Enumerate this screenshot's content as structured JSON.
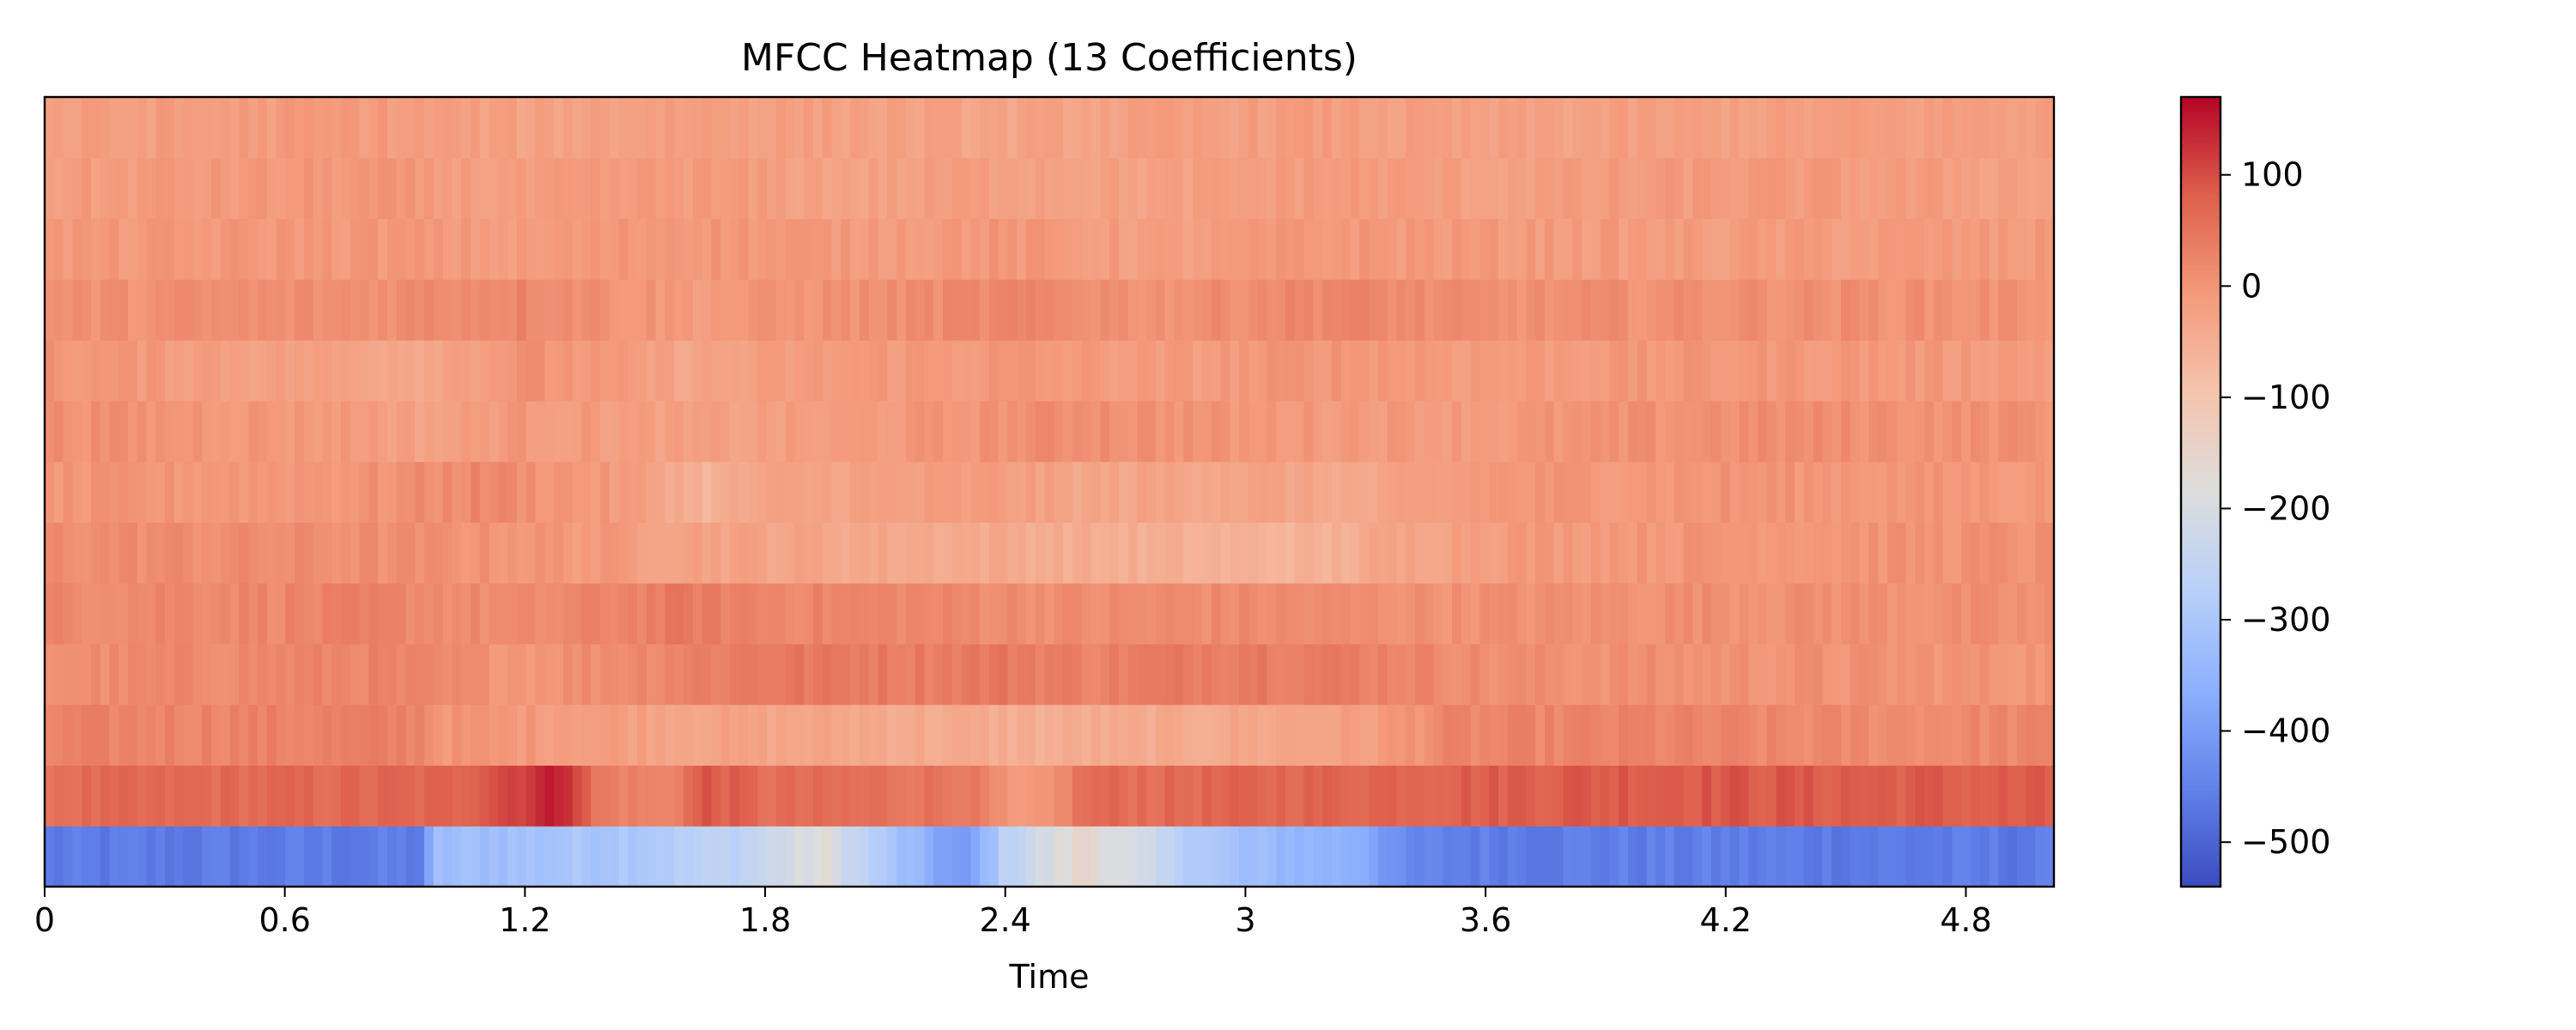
{
  "chart_data": {
    "type": "heatmap",
    "title": "MFCC Heatmap (13 Coefficients)",
    "xlabel": "Time",
    "ylabel": "",
    "x_range": [
      0,
      5.02
    ],
    "x_ticks": [
      "0",
      "0.6",
      "1.2",
      "1.8",
      "2.4",
      "3",
      "3.6",
      "4.2",
      "4.8"
    ],
    "x_tick_values": [
      0,
      0.6,
      1.2,
      1.8,
      2.4,
      3,
      3.6,
      4.2,
      4.8
    ],
    "colormap": "coolwarm",
    "color_range": [
      -540,
      170
    ],
    "colorbar_ticks": [
      "100",
      "0",
      "−100",
      "−200",
      "−300",
      "−400",
      "−500"
    ],
    "colorbar_tick_values": [
      100,
      0,
      -100,
      -200,
      -300,
      -400,
      -500
    ],
    "grid": false,
    "num_frames": 217,
    "coefficient_profiles": [
      {
        "coefficient": 1,
        "base": -460,
        "keyframes": [
          [
            0,
            -465
          ],
          [
            0.95,
            -460
          ],
          [
            0.97,
            -330
          ],
          [
            1.5,
            -290
          ],
          [
            1.75,
            -250
          ],
          [
            1.95,
            -180
          ],
          [
            2.1,
            -300
          ],
          [
            2.3,
            -420
          ],
          [
            2.4,
            -260
          ],
          [
            2.6,
            -150
          ],
          [
            2.8,
            -250
          ],
          [
            3.0,
            -330
          ],
          [
            3.3,
            -360
          ],
          [
            3.4,
            -450
          ],
          [
            3.6,
            -455
          ],
          [
            5.02,
            -465
          ]
        ]
      },
      {
        "coefficient": 2,
        "base": 70,
        "keyframes": [
          [
            0,
            60
          ],
          [
            1.0,
            70
          ],
          [
            1.2,
            120
          ],
          [
            1.3,
            150
          ],
          [
            1.38,
            40
          ],
          [
            1.55,
            20
          ],
          [
            1.65,
            90
          ],
          [
            1.8,
            60
          ],
          [
            2.3,
            50
          ],
          [
            2.42,
            -20
          ],
          [
            2.5,
            -10
          ],
          [
            2.6,
            60
          ],
          [
            3.0,
            70
          ],
          [
            4.0,
            90
          ],
          [
            5.02,
            80
          ]
        ]
      },
      {
        "coefficient": 3,
        "base": 15,
        "keyframes": [
          [
            0,
            25
          ],
          [
            0.95,
            30
          ],
          [
            0.97,
            0
          ],
          [
            1.3,
            -10
          ],
          [
            1.6,
            -25
          ],
          [
            2.0,
            -35
          ],
          [
            2.5,
            -50
          ],
          [
            2.9,
            -40
          ],
          [
            3.3,
            -20
          ],
          [
            3.5,
            20
          ],
          [
            4.0,
            25
          ],
          [
            4.5,
            15
          ],
          [
            5.02,
            20
          ]
        ]
      },
      {
        "coefficient": 4,
        "base": 20,
        "keyframes": [
          [
            0,
            10
          ],
          [
            0.8,
            25
          ],
          [
            1.2,
            0
          ],
          [
            1.6,
            30
          ],
          [
            1.8,
            45
          ],
          [
            2.2,
            40
          ],
          [
            2.4,
            45
          ],
          [
            2.6,
            30
          ],
          [
            3.0,
            45
          ],
          [
            3.3,
            35
          ],
          [
            3.6,
            10
          ],
          [
            4.2,
            5
          ],
          [
            5.02,
            0
          ]
        ]
      },
      {
        "coefficient": 5,
        "base": 15,
        "keyframes": [
          [
            0,
            20
          ],
          [
            0.8,
            25
          ],
          [
            1.2,
            10
          ],
          [
            1.6,
            40
          ],
          [
            1.8,
            25
          ],
          [
            2.2,
            20
          ],
          [
            2.6,
            10
          ],
          [
            3.0,
            15
          ],
          [
            3.6,
            5
          ],
          [
            4.2,
            10
          ],
          [
            5.02,
            5
          ]
        ]
      },
      {
        "coefficient": 6,
        "base": 0,
        "keyframes": [
          [
            0,
            15
          ],
          [
            0.8,
            10
          ],
          [
            1.2,
            0
          ],
          [
            1.6,
            -20
          ],
          [
            2.0,
            -35
          ],
          [
            2.4,
            -40
          ],
          [
            2.8,
            -55
          ],
          [
            3.2,
            -60
          ],
          [
            3.3,
            -40
          ],
          [
            3.6,
            -10
          ],
          [
            4.2,
            0
          ],
          [
            5.02,
            5
          ]
        ]
      },
      {
        "coefficient": 7,
        "base": -10,
        "keyframes": [
          [
            0,
            -5
          ],
          [
            0.8,
            0
          ],
          [
            1.1,
            20
          ],
          [
            1.5,
            -20
          ],
          [
            1.65,
            -60
          ],
          [
            1.8,
            -30
          ],
          [
            2.4,
            -15
          ],
          [
            2.6,
            -35
          ],
          [
            3.0,
            -25
          ],
          [
            3.3,
            -40
          ],
          [
            3.6,
            -5
          ],
          [
            4.2,
            0
          ],
          [
            5.02,
            -5
          ]
        ]
      },
      {
        "coefficient": 8,
        "base": 0,
        "keyframes": [
          [
            0,
            10
          ],
          [
            0.8,
            -10
          ],
          [
            0.95,
            -25
          ],
          [
            1.2,
            -5
          ],
          [
            1.6,
            -25
          ],
          [
            2.0,
            -15
          ],
          [
            2.6,
            15
          ],
          [
            3.0,
            -5
          ],
          [
            3.6,
            -10
          ],
          [
            4.2,
            10
          ],
          [
            5.02,
            5
          ]
        ]
      },
      {
        "coefficient": 9,
        "base": -5,
        "keyframes": [
          [
            0,
            0
          ],
          [
            0.95,
            -30
          ],
          [
            1.2,
            5
          ],
          [
            1.6,
            -30
          ],
          [
            2.0,
            -10
          ],
          [
            2.4,
            -5
          ],
          [
            2.8,
            -15
          ],
          [
            3.2,
            0
          ],
          [
            3.6,
            -10
          ],
          [
            4.2,
            -5
          ],
          [
            5.02,
            -10
          ]
        ]
      },
      {
        "coefficient": 10,
        "base": 0,
        "keyframes": [
          [
            0,
            5
          ],
          [
            0.8,
            10
          ],
          [
            1.2,
            25
          ],
          [
            1.6,
            -10
          ],
          [
            2.0,
            5
          ],
          [
            2.4,
            20
          ],
          [
            2.8,
            5
          ],
          [
            3.2,
            25
          ],
          [
            3.6,
            5
          ],
          [
            4.2,
            10
          ],
          [
            5.02,
            5
          ]
        ]
      },
      {
        "coefficient": 11,
        "base": -5,
        "keyframes": [
          [
            0,
            -10
          ],
          [
            0.8,
            -5
          ],
          [
            1.2,
            -15
          ],
          [
            1.6,
            0
          ],
          [
            2.0,
            -10
          ],
          [
            2.4,
            -5
          ],
          [
            2.8,
            -20
          ],
          [
            3.2,
            -5
          ],
          [
            3.6,
            -10
          ],
          [
            4.2,
            -15
          ],
          [
            5.02,
            -10
          ]
        ]
      },
      {
        "coefficient": 12,
        "base": -10,
        "keyframes": [
          [
            0,
            -15
          ],
          [
            0.8,
            -5
          ],
          [
            1.2,
            -20
          ],
          [
            1.6,
            -10
          ],
          [
            2.0,
            -25
          ],
          [
            2.4,
            -15
          ],
          [
            2.8,
            -25
          ],
          [
            3.2,
            -10
          ],
          [
            3.6,
            -20
          ],
          [
            4.2,
            -10
          ],
          [
            5.02,
            -20
          ]
        ]
      },
      {
        "coefficient": 13,
        "base": -15,
        "keyframes": [
          [
            0,
            -20
          ],
          [
            0.8,
            -10
          ],
          [
            1.2,
            -25
          ],
          [
            1.6,
            -15
          ],
          [
            2.0,
            -20
          ],
          [
            2.4,
            -30
          ],
          [
            2.8,
            -20
          ],
          [
            3.2,
            -15
          ],
          [
            3.6,
            -25
          ],
          [
            4.2,
            -20
          ],
          [
            5.02,
            -15
          ]
        ]
      }
    ]
  }
}
